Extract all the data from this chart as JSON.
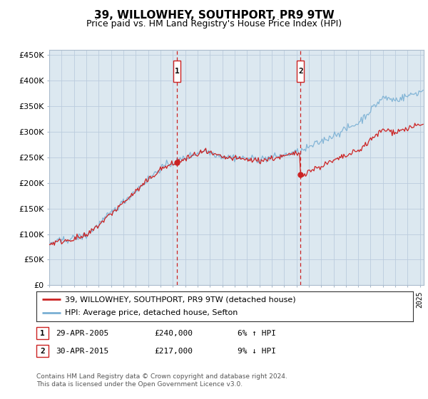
{
  "title": "39, WILLOWHEY, SOUTHPORT, PR9 9TW",
  "subtitle": "Price paid vs. HM Land Registry's House Price Index (HPI)",
  "ylabel_ticks": [
    "£0",
    "£50K",
    "£100K",
    "£150K",
    "£200K",
    "£250K",
    "£300K",
    "£350K",
    "£400K",
    "£450K"
  ],
  "ytick_values": [
    0,
    50000,
    100000,
    150000,
    200000,
    250000,
    300000,
    350000,
    400000,
    450000
  ],
  "ylim": [
    0,
    460000
  ],
  "xlim_start": 1995.0,
  "xlim_end": 2025.3,
  "sale1_x": 2005.33,
  "sale1_price": 240000,
  "sale1_label": "1",
  "sale2_x": 2015.33,
  "sale2_price": 217000,
  "sale2_label": "2",
  "legend_line1": "39, WILLOWHEY, SOUTHPORT, PR9 9TW (detached house)",
  "legend_line2": "HPI: Average price, detached house, Sefton",
  "footer1": "Contains HM Land Registry data © Crown copyright and database right 2024.",
  "footer2": "This data is licensed under the Open Government Licence v3.0.",
  "info1_label": "1",
  "info1_date": "29-APR-2005",
  "info1_price": "£240,000",
  "info1_hpi": "6% ↑ HPI",
  "info2_label": "2",
  "info2_date": "30-APR-2015",
  "info2_price": "£217,000",
  "info2_hpi": "9% ↓ HPI",
  "line_red": "#cc2222",
  "line_blue": "#7ab0d4",
  "bg_color": "#dce8f0",
  "grid_color": "#bbccdd"
}
